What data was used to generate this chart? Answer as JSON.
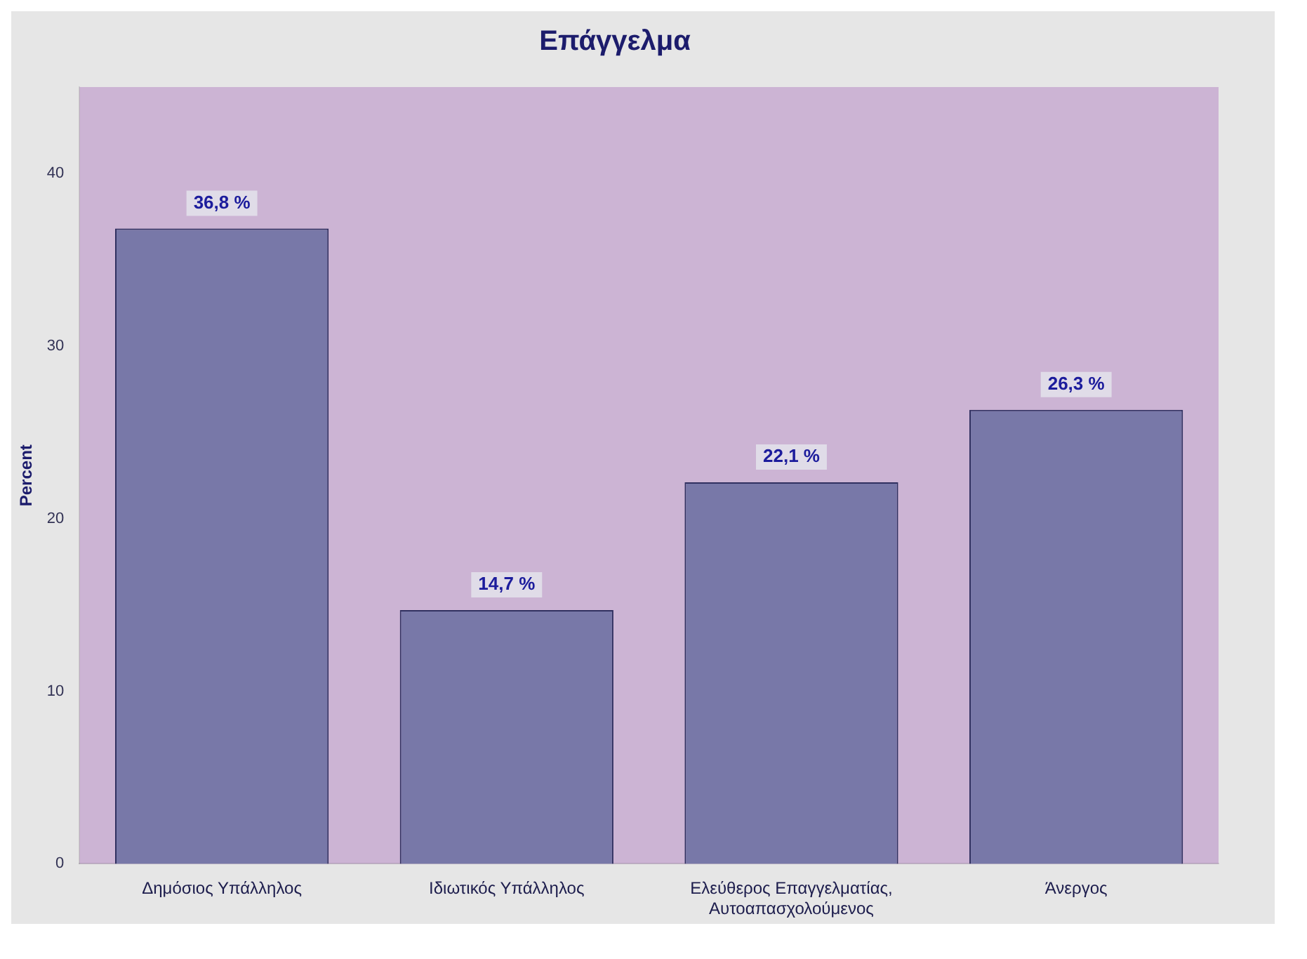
{
  "chart_data": {
    "type": "bar",
    "title": "Επάγγελμα",
    "ylabel": "Percent",
    "categories": [
      "Δημόσιος Υπάλληλος",
      "Ιδιωτικός Υπάλληλος",
      "Ελεύθερος Επαγγελματίας, Αυτοαπασχολούμενος",
      "Άνεργος"
    ],
    "values": [
      36.8,
      14.7,
      22.1,
      26.3
    ],
    "value_labels": [
      "36,8 %",
      "14,7 %",
      "22,1 %",
      "26,3 %"
    ],
    "color": "#7878a8",
    "ylim": [
      0,
      45
    ],
    "yticks": [
      0,
      10,
      20,
      30,
      40
    ],
    "grid": false,
    "legend": false
  }
}
